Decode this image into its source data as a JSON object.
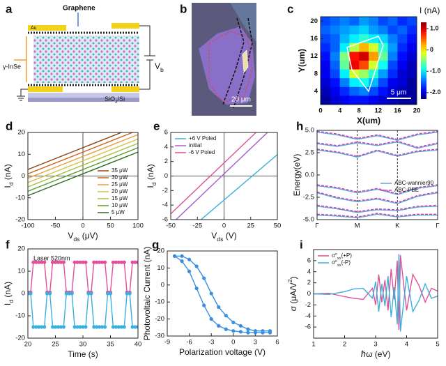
{
  "figure": {
    "schematic": {
      "panel_label": "a",
      "electrode": "Au",
      "top_layer": "Graphene",
      "crystal": "γ-InSe",
      "bias": [
        "V",
        {
          "sub": "b"
        }
      ],
      "substrate": [
        "SiO",
        {
          "sub": "2"
        },
        "/Si"
      ]
    },
    "micrograph": {
      "panel_label": "b",
      "scale_bar": "20 μm"
    }
  },
  "chart_data": [
    {
      "type": "heatmap",
      "panel_label": "c",
      "xlabel": "X(um)",
      "ylabel": "Y(um)",
      "colorbar_label": "I (nA)",
      "scale_bar": "5 μm",
      "xlim": [
        0,
        20
      ],
      "ylim": [
        1,
        21
      ],
      "xticks": [
        0,
        4,
        8,
        12,
        16,
        20
      ],
      "yticks": [
        4,
        8,
        12,
        16,
        20
      ],
      "clim": [
        -2.3,
        1.3
      ],
      "cticks": [
        {
          "value": 1,
          "label": "1.0"
        },
        0,
        {
          "value": -1,
          "label": "-1.0"
        },
        {
          "value": -2,
          "label": "-2.0"
        }
      ],
      "x": [
        1,
        3,
        5,
        7,
        9,
        11,
        13,
        15,
        17,
        19
      ],
      "y": [
        20,
        18,
        16,
        14,
        12,
        10,
        8,
        6,
        4,
        2
      ],
      "z": [
        [
          -1.6,
          -1.5,
          -1.4,
          -1.5,
          -1.3,
          -1.4,
          -1.6,
          -1.5,
          -1.7,
          -1.6
        ],
        [
          -1.5,
          -1.4,
          -1.3,
          -1.2,
          -1.1,
          -1.3,
          -1.4,
          -1.6,
          -1.5,
          -1.7
        ],
        [
          -1.6,
          -1.5,
          -1.2,
          -1.0,
          -0.8,
          -1.0,
          -1.1,
          -1.4,
          -1.6,
          -1.8
        ],
        [
          -1.7,
          -1.5,
          -1.0,
          -0.3,
          0.2,
          -0.2,
          -0.8,
          -1.3,
          -1.7,
          -1.9
        ],
        [
          -1.8,
          -1.4,
          -0.5,
          0.8,
          1.0,
          0.3,
          -0.6,
          -1.4,
          -1.8,
          -2.0
        ],
        [
          -1.9,
          -1.5,
          -0.6,
          0.9,
          0.6,
          -0.2,
          -0.9,
          -1.6,
          -1.9,
          -2.1
        ],
        [
          -1.9,
          -1.6,
          -1.0,
          -0.2,
          -0.4,
          -0.8,
          -1.3,
          -1.7,
          -2.0,
          -2.1
        ],
        [
          -2.0,
          -1.8,
          -1.4,
          -1.0,
          -0.9,
          -1.2,
          -1.6,
          -1.9,
          -2.0,
          -2.2
        ],
        [
          -2.1,
          -1.9,
          -1.7,
          -1.5,
          -1.4,
          -1.6,
          -1.8,
          -2.0,
          -2.1,
          -2.2
        ],
        [
          -2.2,
          -2.0,
          -1.9,
          -1.8,
          -1.8,
          -1.9,
          -2.0,
          -2.1,
          -2.2,
          -2.2
        ]
      ]
    },
    {
      "type": "line",
      "panel_label": "d",
      "xlabel": [
        "V",
        {
          "sub": "ds"
        },
        " (μV)"
      ],
      "ylabel": [
        "I",
        {
          "sub": "d"
        },
        " (nA)"
      ],
      "xlim": [
        -100,
        100
      ],
      "ylim": [
        -20,
        20
      ],
      "xticks": [
        -100,
        -50,
        0,
        50,
        100
      ],
      "yticks": [
        -20,
        -10,
        0,
        10,
        20
      ],
      "zero_lines": true,
      "legend": "lower right",
      "x": [
        -100,
        100
      ],
      "series": [
        {
          "name": "35 μW",
          "color": "#8b4513",
          "values": [
            3,
            23
          ]
        },
        {
          "name": "30 μW",
          "color": "#c8641e",
          "values": [
            1,
            21
          ]
        },
        {
          "name": "25 μW",
          "color": "#e6a040",
          "values": [
            -1,
            19
          ]
        },
        {
          "name": "20 μW",
          "color": "#d6c23c",
          "values": [
            -3,
            17
          ]
        },
        {
          "name": "15 μW",
          "color": "#a8c040",
          "values": [
            -5,
            15
          ]
        },
        {
          "name": "10 μW",
          "color": "#5a9a30",
          "values": [
            -7,
            13
          ]
        },
        {
          "name": "5 μW",
          "color": "#2e6b1e",
          "values": [
            -9,
            11
          ]
        }
      ]
    },
    {
      "type": "line",
      "panel_label": "e",
      "xlabel": [
        "V",
        {
          "sub": "ds"
        },
        " (V)"
      ],
      "ylabel": [
        "I",
        {
          "sub": "d"
        },
        " (nA)"
      ],
      "xlim": [
        -50,
        50
      ],
      "ylim": [
        -6,
        6
      ],
      "xticks": [
        -50,
        -25,
        0,
        25,
        50
      ],
      "yticks": [
        -6,
        -4,
        -2,
        0,
        2,
        4,
        6
      ],
      "zero_lines": true,
      "legend": "upper left",
      "x": [
        -50,
        50
      ],
      "series": [
        {
          "name": "+6 V Poled",
          "color": "#3bb0d8",
          "values": [
            -9.55,
            2.95
          ]
        },
        {
          "name": "initial",
          "color": "#a35fd0",
          "values": [
            -6.7,
            7.3
          ]
        },
        {
          "name": "-6 V Poled",
          "color": "#e0509a",
          "values": [
            -5.2,
            8.8
          ]
        }
      ]
    },
    {
      "type": "line",
      "panel_label": "h",
      "ylabel": "Energy(eV)",
      "xlim": [
        0,
        3
      ],
      "ylim": [
        -5,
        5
      ],
      "xticks": [
        {
          "value": 0,
          "label": "Γ"
        },
        {
          "value": 1,
          "label": "M"
        },
        {
          "value": 2,
          "label": "K"
        },
        {
          "value": 3,
          "label": "Γ"
        }
      ],
      "yticks": [
        {
          "value": -5,
          "label": "-5.0"
        },
        {
          "value": -2.5,
          "label": "-2.5"
        },
        {
          "value": 0,
          "label": "0.0"
        },
        {
          "value": 2.5,
          "label": "2.5"
        },
        {
          "value": 5,
          "label": "5.0"
        }
      ],
      "xtick_lines": true,
      "legend": "center right",
      "x": [
        0,
        0.5,
        1,
        1.5,
        2,
        2.5,
        3
      ],
      "series": [
        {
          "name": "ABC-wannier90",
          "color": "#5aa8d8",
          "bands": [
            [
              4.8,
              4.5,
              4.0,
              4.4,
              3.9,
              4.5,
              4.8
            ],
            [
              3.5,
              3.2,
              3.6,
              3.3,
              3.7,
              3.0,
              3.5
            ],
            [
              2.8,
              2.5,
              2.0,
              2.7,
              2.1,
              2.6,
              2.8
            ],
            [
              -1.2,
              -1.5,
              -2.0,
              -1.6,
              -2.2,
              -1.5,
              -1.2
            ],
            [
              -2.0,
              -2.6,
              -3.0,
              -2.7,
              -3.2,
              -2.4,
              -2.0
            ],
            [
              -3.5,
              -3.8,
              -4.2,
              -3.9,
              -4.0,
              -3.6,
              -3.5
            ],
            [
              -4.5,
              -4.6,
              -4.8,
              -4.4,
              -4.7,
              -4.5,
              -4.5
            ]
          ]
        },
        {
          "name": "ABC-PBE",
          "color": "#d040b0",
          "dash": true,
          "bands": [
            [
              4.9,
              4.6,
              4.1,
              4.5,
              4.0,
              4.6,
              4.9
            ],
            [
              3.6,
              3.3,
              3.7,
              3.4,
              3.8,
              3.1,
              3.6
            ],
            [
              2.9,
              2.6,
              2.1,
              2.8,
              2.2,
              2.7,
              2.9
            ],
            [
              -1.1,
              -1.4,
              -1.9,
              -1.5,
              -2.1,
              -1.4,
              -1.1
            ],
            [
              -1.9,
              -2.5,
              -2.9,
              -2.6,
              -3.1,
              -2.3,
              -1.9
            ],
            [
              -3.4,
              -3.7,
              -4.1,
              -3.8,
              -3.9,
              -3.5,
              -3.4
            ],
            [
              -4.4,
              -4.5,
              -4.7,
              -4.3,
              -4.6,
              -4.4,
              -4.4
            ]
          ]
        }
      ]
    },
    {
      "type": "line",
      "panel_label": "f",
      "xlabel": "Time (s)",
      "ylabel": [
        "I",
        {
          "sub": "d"
        },
        " (nA)"
      ],
      "annotation": "Laser 520nm",
      "xlim": [
        20,
        40
      ],
      "ylim": [
        -20,
        20
      ],
      "xticks": [
        20,
        25,
        30,
        35,
        40
      ],
      "yticks": [
        -20,
        -10,
        0,
        10,
        20
      ],
      "markers": true,
      "x": [
        20,
        20.5,
        21,
        21.5,
        22,
        22.5,
        23,
        23.5,
        24,
        24.5,
        25,
        25.5,
        26,
        26.5,
        27,
        27.5,
        28,
        28.5,
        29,
        29.5,
        30,
        30.5,
        31,
        31.5,
        32,
        32.5,
        33,
        33.5,
        34,
        34.5,
        35,
        35.5,
        36,
        36.5,
        37,
        37.5,
        38,
        38.5,
        39,
        39.5,
        40
      ],
      "series": [
        {
          "color": "#e0509a",
          "values": [
            0.5,
            0.5,
            14,
            14,
            14,
            14,
            14,
            0.5,
            0.5,
            14,
            14,
            14,
            14,
            14,
            0.5,
            0.5,
            0.5,
            14,
            14,
            14,
            14,
            14,
            0.5,
            0.5,
            14,
            14,
            14,
            14,
            14,
            0.5,
            0.5,
            14,
            14,
            14,
            14,
            14,
            0.5,
            0.5,
            14,
            14,
            14
          ]
        },
        {
          "color": "#3bb0e0",
          "values": [
            0,
            0,
            -15,
            -15,
            -15,
            -15,
            -15,
            0,
            0,
            -15,
            -15,
            -15,
            -15,
            -15,
            0,
            0,
            0,
            -15,
            -15,
            -15,
            -15,
            -15,
            0,
            0,
            -15,
            -15,
            -15,
            -15,
            -15,
            0,
            0,
            -15,
            -15,
            -15,
            -15,
            -15,
            0,
            0,
            -15,
            -15,
            -15
          ]
        }
      ]
    },
    {
      "type": "scatter",
      "panel_label": "g",
      "xlabel": "Polarization voltage (V)",
      "ylabel": "Photovoltaic Current (nA)",
      "xlim": [
        -9,
        6
      ],
      "ylim": [
        -30,
        20
      ],
      "xticks": [
        -9,
        -6,
        -3,
        0,
        3,
        6
      ],
      "yticks": [
        -30,
        -20,
        -10,
        0,
        10,
        20
      ],
      "markers": true,
      "series": [
        {
          "color": "#3a8ee0",
          "x": [
            -8,
            -7,
            -6,
            -5,
            -4,
            -3,
            -2,
            -1,
            0,
            1,
            2,
            3,
            4,
            5
          ],
          "values": [
            17,
            17,
            15,
            11,
            4,
            -5,
            -13,
            -18,
            -22,
            -24,
            -26,
            -27,
            -27,
            -27
          ]
        },
        {
          "color": "#3a8ee0",
          "x": [
            5,
            4,
            3,
            2,
            1,
            0,
            -1,
            -2,
            -3,
            -4,
            -5,
            -6,
            -7,
            -8
          ],
          "values": [
            -28,
            -28,
            -28,
            -28,
            -27.5,
            -27,
            -26,
            -24,
            -20,
            -12,
            -2,
            8,
            14,
            17
          ]
        }
      ]
    },
    {
      "type": "line",
      "panel_label": "i",
      "xlabel": "ℏω (eV)",
      "ylabel": [
        "σ (μA/V",
        {
          "sup": "2"
        },
        ")"
      ],
      "xlim": [
        1,
        5
      ],
      "ylim": [
        -8,
        8
      ],
      "xticks": [
        1,
        2,
        3,
        4,
        5
      ],
      "yticks": [
        -6,
        -4,
        -2,
        0,
        2,
        4,
        6
      ],
      "legend": "upper left",
      "x": [
        1.0,
        1.5,
        2.0,
        2.3,
        2.6,
        2.9,
        3.0,
        3.1,
        3.2,
        3.3,
        3.4,
        3.5,
        3.6,
        3.7,
        3.75,
        3.8,
        3.9,
        4.0,
        4.2,
        4.4,
        4.6,
        4.8,
        5.0
      ],
      "series": [
        {
          "name": [
            "σ",
            {
              "sup": "c"
            },
            {
              "sub": "xx"
            },
            "(+P)"
          ],
          "color": "#e0509a",
          "values": [
            0,
            0.1,
            -0.5,
            -0.8,
            -1.0,
            1.0,
            -2.0,
            3.5,
            -1.5,
            2.5,
            -3.0,
            4.5,
            -1.0,
            6.0,
            -6.5,
            7.0,
            2.0,
            -3.0,
            3.5,
            1.5,
            -1.5,
            1.0,
            0.5
          ]
        },
        {
          "name": [
            "σ",
            {
              "sup": "c"
            },
            {
              "sub": "xx"
            },
            "(-P)"
          ],
          "color": "#3bb0d8",
          "values": [
            0,
            -0.1,
            0.4,
            0.9,
            1.0,
            -0.8,
            2.2,
            -3.2,
            1.8,
            -2.2,
            3.2,
            -4.2,
            1.2,
            -5.5,
            7.2,
            -6.8,
            -1.8,
            3.2,
            -3.2,
            -1.2,
            1.8,
            -0.8,
            -0.4
          ]
        }
      ]
    }
  ]
}
